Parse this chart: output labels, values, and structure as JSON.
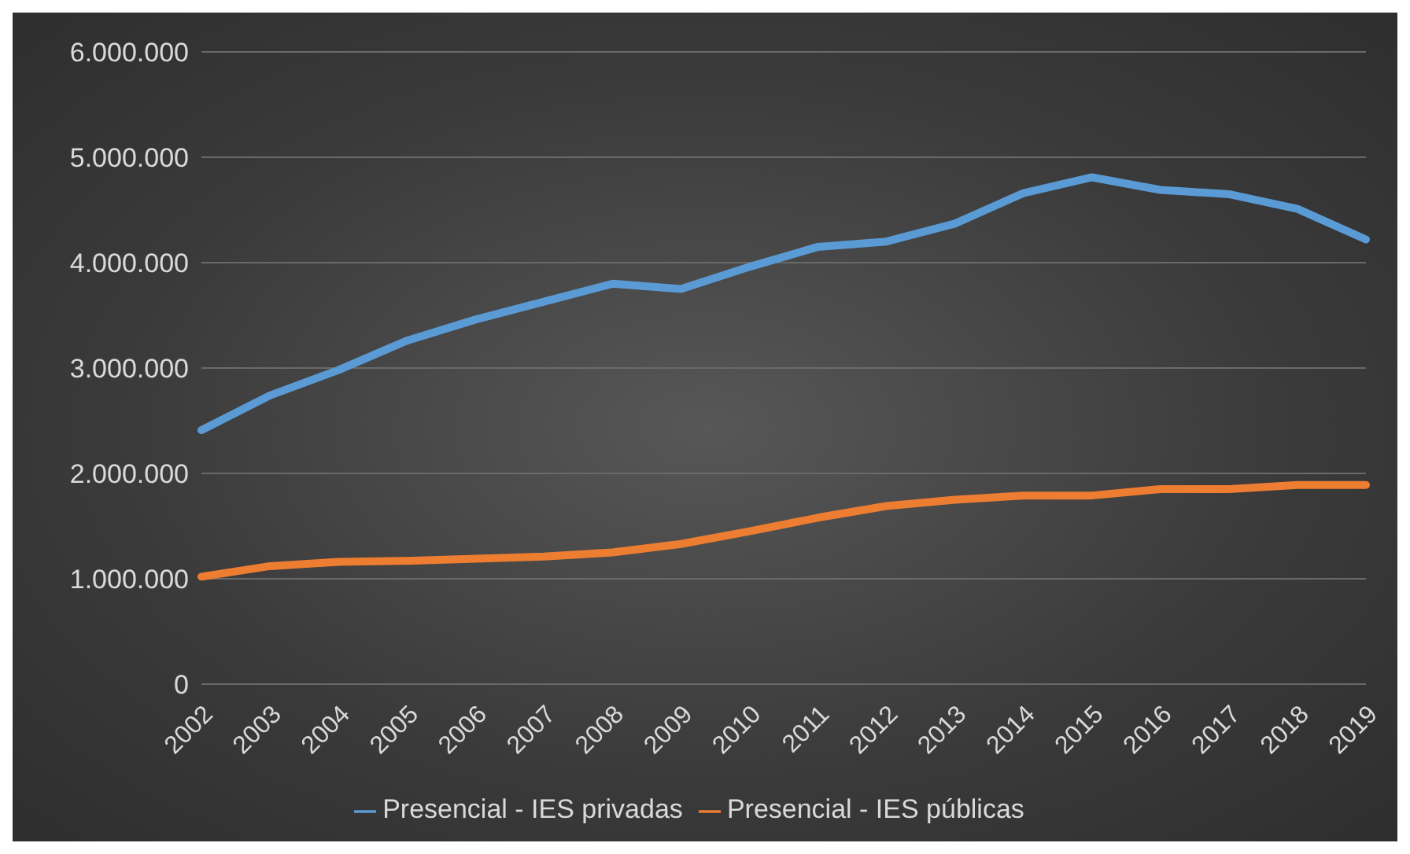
{
  "chart_data": {
    "type": "line",
    "categories": [
      "2002",
      "2003",
      "2004",
      "2005",
      "2006",
      "2007",
      "2008",
      "2009",
      "2010",
      "2011",
      "2012",
      "2013",
      "2014",
      "2015",
      "2016",
      "2017",
      "2018",
      "2019"
    ],
    "series": [
      {
        "name": "Presencial - IES privadas",
        "color": "#5b9bd5",
        "values": [
          2410000,
          2740000,
          2980000,
          3260000,
          3460000,
          3630000,
          3800000,
          3750000,
          3960000,
          4150000,
          4200000,
          4370000,
          4660000,
          4810000,
          4690000,
          4650000,
          4510000,
          4220000
        ]
      },
      {
        "name": "Presencial - IES públicas",
        "color": "#ed7d31",
        "values": [
          1020000,
          1120000,
          1160000,
          1170000,
          1190000,
          1210000,
          1250000,
          1330000,
          1450000,
          1580000,
          1690000,
          1750000,
          1790000,
          1790000,
          1850000,
          1850000,
          1890000,
          1890000
        ]
      }
    ],
    "ylim": [
      0,
      6000000
    ],
    "yticks": [
      0,
      {
        "value": 1000000,
        "label": "1.000.000"
      },
      {
        "value": 2000000,
        "label": "2.000.000"
      },
      {
        "value": 3000000,
        "label": "3.000.000"
      },
      {
        "value": 4000000,
        "label": "4.000.000"
      },
      {
        "value": 5000000,
        "label": "5.000.000"
      },
      {
        "value": 6000000,
        "label": "6.000.000"
      }
    ],
    "grid": "y",
    "legend": "bottom",
    "marker": "none",
    "line_style": "solid"
  }
}
